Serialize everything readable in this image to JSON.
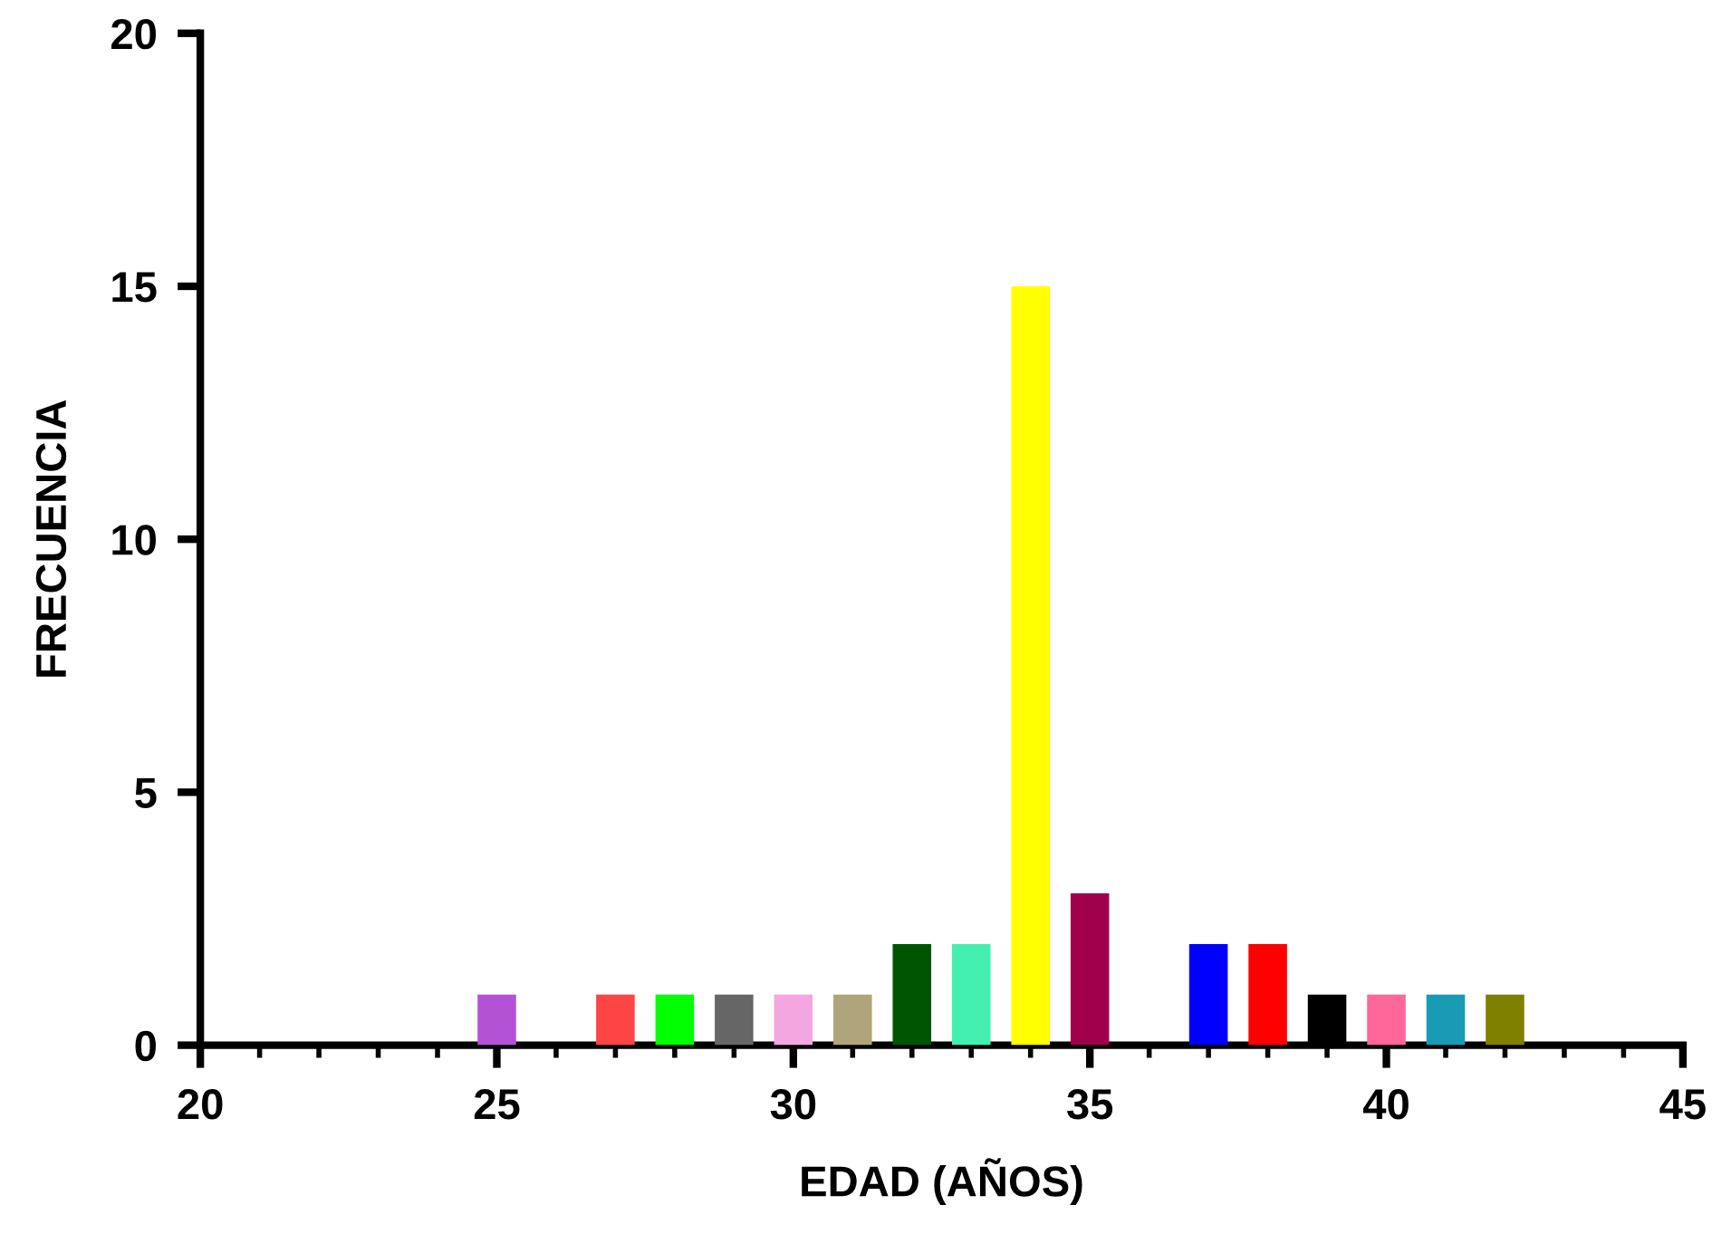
{
  "chart_data": {
    "type": "bar",
    "xlabel": "EDAD (AÑOS)",
    "ylabel": "FRECUENCIA",
    "x": [
      25,
      27,
      28,
      29,
      30,
      31,
      32,
      33,
      34,
      35,
      37,
      38,
      39,
      40,
      41,
      42
    ],
    "values": [
      1,
      1,
      1,
      1,
      1,
      1,
      2,
      2,
      15,
      3,
      2,
      2,
      1,
      1,
      1,
      1
    ],
    "colors": [
      "#b452d6",
      "#ff4444",
      "#00ff00",
      "#666666",
      "#f4a6e0",
      "#b0a47a",
      "#005500",
      "#44f0b0",
      "#ffff00",
      "#a0004c",
      "#0000ff",
      "#ff0000",
      "#000000",
      "#ff6699",
      "#1a9bb5",
      "#808000"
    ],
    "xlim": [
      20,
      45
    ],
    "xticks": [
      20,
      25,
      30,
      35,
      40,
      45
    ],
    "ylim": [
      0,
      20
    ],
    "yticks": [
      0,
      5,
      10,
      15,
      20
    ],
    "grid": false,
    "legend": false
  }
}
